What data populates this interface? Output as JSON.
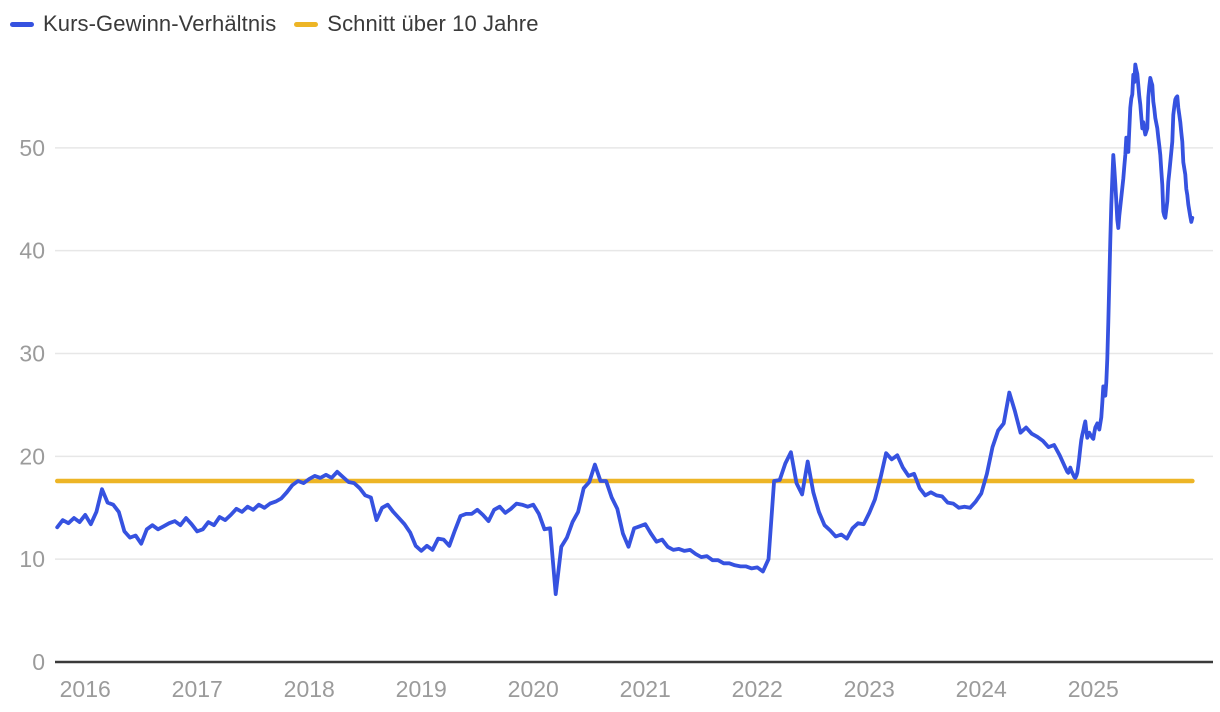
{
  "legend": {
    "items": [
      {
        "id": "kgv",
        "label": "Kurs-Gewinn-Verhältnis",
        "color": "#3652e0"
      },
      {
        "id": "schnitt",
        "label": "Schnitt über 10 Jahre",
        "color": "#edb526"
      }
    ]
  },
  "chart_data": {
    "type": "line",
    "title": "",
    "xlabel": "",
    "ylabel": "",
    "grid": "horizontal",
    "legend_position": "top-left",
    "x_ticks": [
      2016,
      2017,
      2018,
      2019,
      2020,
      2021,
      2022,
      2023,
      2024,
      2025
    ],
    "y_ticks": [
      0,
      10,
      20,
      30,
      40,
      50
    ],
    "x_domain": [
      2015.73,
      2026.06
    ],
    "y_domain": [
      0,
      60
    ],
    "axis_colors": {
      "label": "#9b9b9b",
      "grid": "#e7e7e7",
      "baseline": "#3a3a3a"
    },
    "series": [
      {
        "name": "Kurs-Gewinn-Verhältnis",
        "color": "#3652e0",
        "segments": [
          {
            "t_start": 2015.75,
            "t_step": 0.05,
            "values": [
              13.1,
              13.8,
              13.5,
              14.0,
              13.6,
              14.3,
              13.4,
              14.6,
              16.8,
              15.5,
              15.3,
              14.6,
              12.7,
              12.1,
              12.3,
              11.5,
              12.9,
              13.3,
              12.9,
              13.2,
              13.5,
              13.7,
              13.3,
              14.0,
              13.4,
              12.7,
              12.9,
              13.6,
              13.3,
              14.1,
              13.8,
              14.3,
              14.9,
              14.6,
              15.1,
              14.8,
              15.3,
              15.0,
              15.4,
              15.6,
              15.9,
              16.5,
              17.2,
              17.6,
              17.4,
              17.8,
              18.1,
              17.9,
              18.2,
              17.9,
              18.5,
              18.0,
              17.5,
              17.4,
              16.9,
              16.2,
              16.0,
              13.8,
              15.0,
              15.3,
              14.6,
              14.0,
              13.4,
              12.6,
              11.3,
              10.8,
              11.3,
              10.9,
              12.0,
              11.9,
              11.3,
              12.8,
              14.2,
              14.4,
              14.4,
              14.8,
              14.3,
              13.7,
              14.8,
              15.1,
              14.5,
              14.9,
              15.4,
              15.3,
              15.1,
              15.3,
              14.4,
              12.9,
              13.0,
              6.6,
              11.2,
              12.1,
              13.6,
              14.6,
              16.9,
              17.5,
              19.2,
              17.6,
              17.6,
              16.0,
              14.9,
              12.5,
              11.2,
              13.0,
              13.2,
              13.4,
              12.5,
              11.7,
              11.9,
              11.2,
              10.9,
              11.0,
              10.8,
              10.9,
              10.5,
              10.2,
              10.3,
              9.9,
              9.9,
              9.6,
              9.6,
              9.4,
              9.3,
              9.3,
              9.1,
              9.2,
              8.8,
              10.0,
              17.6,
              17.7,
              19.3,
              20.4,
              17.4,
              16.3,
              19.5,
              16.5,
              14.6,
              13.3,
              12.8,
              12.2,
              12.4,
              12.0,
              13.0,
              13.5,
              13.4,
              14.5,
              15.8,
              17.9,
              20.3,
              19.7,
              20.1,
              18.9,
              18.1,
              18.3,
              16.9,
              16.2,
              16.5,
              16.2,
              16.1,
              15.5,
              15.4,
              15.0,
              15.1,
              15.0,
              15.6,
              16.4,
              18.3,
              20.9,
              22.5,
              23.2,
              26.2,
              24.4,
              22.3,
              22.8,
              22.2,
              21.9,
              21.5,
              20.9,
              21.1,
              20.1,
              18.9
            ]
          },
          {
            "t_start": 2024.759,
            "t_step": 0.00893,
            "values": [
              18.7,
              18.5,
              18.4,
              18.6,
              18.9,
              18.6,
              18.4,
              18.2,
              18.0,
              17.9,
              18.1,
              18.4,
              19.1,
              19.9,
              20.8,
              21.6,
              22.1,
              22.5,
              23.0,
              23.4,
              22.5,
              21.8,
              22.0,
              22.3,
              22.1,
              22.0,
              21.8,
              21.7,
              22.3,
              22.8,
              23.0,
              23.2,
              22.9,
              22.6,
              23.2,
              23.8,
              25.2,
              26.8,
              26.3,
              25.9,
              27.2,
              29.5,
              33.0,
              37.0,
              41.0,
              44.5,
              47.0,
              49.3,
              48.0,
              46.5,
              44.8,
              43.0,
              42.2,
              43.4,
              44.3,
              45.2,
              46.1,
              47.0,
              48.2,
              49.3,
              51.0,
              50.2,
              49.6,
              51.8,
              53.9,
              54.8,
              55.2,
              57.1,
              56.4,
              58.1,
              57.6,
              57.2,
              56.1,
              55.0,
              54.2,
              53.0,
              51.9,
              52.5,
              51.8,
              51.3,
              51.6,
              51.9,
              54.9,
              56.0,
              56.8,
              56.4,
              56.1,
              54.5,
              53.8,
              52.9,
              52.4,
              51.9,
              51.0,
              50.2,
              49.3,
              47.8,
              46.4,
              43.8,
              43.4,
              43.2,
              44.0,
              44.8,
              46.7,
              47.6,
              48.6,
              49.6,
              50.6,
              53.2,
              54.0,
              54.7,
              54.9,
              55.0,
              53.9,
              53.2,
              52.5,
              51.5,
              50.6,
              48.6,
              48.0,
              47.4,
              46.0,
              45.4,
              44.5,
              43.9,
              43.3,
              42.8,
              43.2
            ]
          }
        ]
      },
      {
        "name": "Schnitt über 10 Jahre",
        "color": "#edb526",
        "constant_value": 17.6,
        "t_start": 2015.75,
        "t_end": 2025.885
      }
    ]
  }
}
